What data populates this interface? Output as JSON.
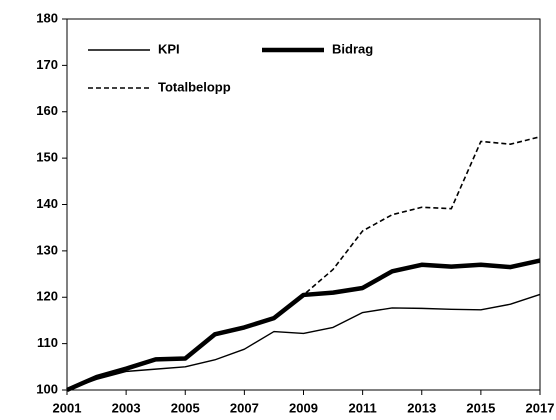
{
  "chart_data": {
    "type": "line",
    "x": [
      2001,
      2002,
      2003,
      2004,
      2005,
      2006,
      2007,
      2008,
      2009,
      2010,
      2011,
      2012,
      2013,
      2014,
      2015,
      2016,
      2017
    ],
    "series": [
      {
        "name": "Totalbelopp",
        "color": "#000000",
        "dash": true,
        "width": 1.6,
        "values": [
          100,
          102.8,
          104.6,
          106.6,
          106.8,
          112,
          113.5,
          115.5,
          120.5,
          126,
          134.3,
          137.8,
          139.4,
          139.1,
          153.6,
          153,
          154.6
        ]
      },
      {
        "name": "KPI",
        "color": "#000000",
        "dash": false,
        "width": 1.4,
        "values": [
          100,
          102.3,
          104,
          104.5,
          105,
          106.5,
          108.8,
          112.6,
          112.2,
          113.5,
          116.7,
          117.7,
          117.6,
          117.4,
          117.3,
          118.5,
          120.6
        ]
      },
      {
        "name": "Bidrag",
        "color": "#000000",
        "dash": false,
        "width": 4.5,
        "values": [
          100,
          102.8,
          104.6,
          106.6,
          106.8,
          112,
          113.5,
          115.5,
          120.5,
          121,
          122,
          125.6,
          127,
          126.6,
          127,
          126.5,
          127.9
        ]
      }
    ],
    "xlim": [
      2001,
      2017
    ],
    "xticks": [
      2001,
      2003,
      2005,
      2007,
      2009,
      2011,
      2013,
      2015,
      2017
    ],
    "ylim": [
      100,
      180
    ],
    "yticks": [
      100,
      110,
      120,
      130,
      140,
      150,
      160,
      170,
      180
    ],
    "grid": false,
    "legend": "upper left"
  }
}
